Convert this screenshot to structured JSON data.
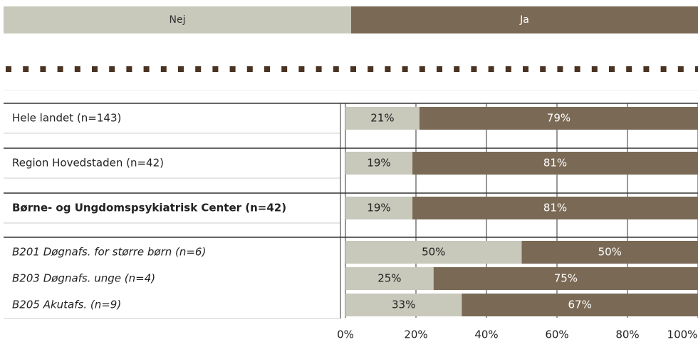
{
  "chart_data": {
    "type": "stacked-bar-horizontal",
    "categories": [
      "Hele landet (n=143)",
      "Region Hovedstaden (n=42)",
      "Børne- og Ungdomspsykiatrisk Center (n=42)",
      "B201 Døgnafs. for større børn (n=6)",
      "B203 Døgnafs. unge (n=4)",
      "B205 Akutafs. (n=9)"
    ],
    "series": [
      {
        "name": "Nej",
        "color": "#c8c8bb",
        "values": [
          21,
          19,
          19,
          50,
          25,
          33
        ],
        "value_labels": [
          "21%",
          "19%",
          "19%",
          "50%",
          "25%",
          "33%"
        ]
      },
      {
        "name": "Ja",
        "color": "#7a6a55",
        "values": [
          79,
          81,
          81,
          50,
          75,
          67
        ],
        "value_labels": [
          "79%",
          "81%",
          "81%",
          "50%",
          "75%",
          "67%"
        ]
      }
    ],
    "xlim": [
      0,
      100
    ],
    "xticks": [
      {
        "value": 0,
        "label": "0%"
      },
      {
        "value": 20,
        "label": "20%"
      },
      {
        "value": 40,
        "label": "40%"
      },
      {
        "value": 60,
        "label": "60%"
      },
      {
        "value": 80,
        "label": "80%"
      },
      {
        "value": 100,
        "label": "100%"
      }
    ]
  }
}
